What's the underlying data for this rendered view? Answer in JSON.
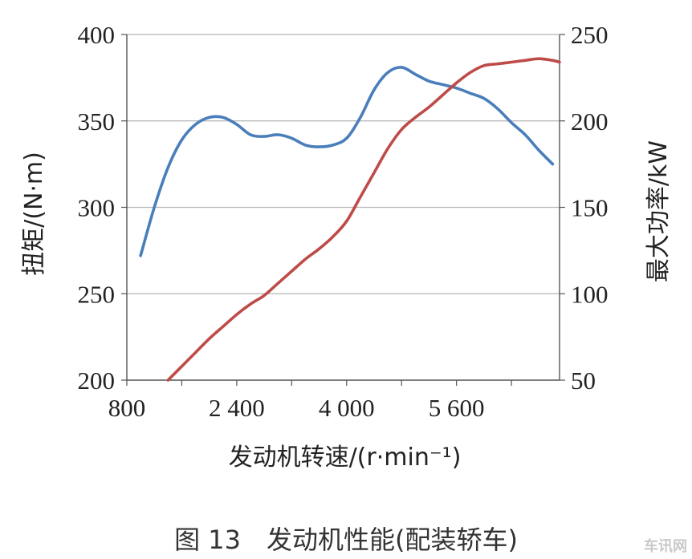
{
  "chart_data": {
    "type": "line",
    "x": [
      1000,
      1200,
      1400,
      1600,
      1800,
      2000,
      2200,
      2400,
      2600,
      2800,
      3000,
      3200,
      3400,
      3600,
      3800,
      4000,
      4200,
      4400,
      4600,
      4800,
      5000,
      5200,
      5400,
      5600,
      5800,
      6000,
      6200,
      6400,
      6600,
      6800,
      7000
    ],
    "xlabel": "发动机转速/(r·min⁻¹)",
    "xticks": [
      "800",
      "2 400",
      "4 000",
      "5 600"
    ],
    "xtick_values": [
      800,
      2400,
      4000,
      5600
    ],
    "xlim": [
      800,
      7100
    ],
    "y_left": {
      "label": "扭矩/(N·m)",
      "ticks": [
        "200",
        "250",
        "300",
        "350",
        "400"
      ],
      "tick_values": [
        200,
        250,
        300,
        350,
        400
      ],
      "ylim": [
        200,
        400
      ]
    },
    "y_right": {
      "label": "最大功率/kW",
      "ticks": [
        "50",
        "100",
        "150",
        "200",
        "250"
      ],
      "tick_values": [
        50,
        100,
        150,
        200,
        250
      ],
      "ylim": [
        50,
        250
      ]
    },
    "series": [
      {
        "axis": "left",
        "color": "#4a7ebb",
        "values": [
          272,
          300,
          323,
          339,
          348,
          352,
          352,
          348,
          342,
          341,
          342,
          340,
          336,
          335,
          336,
          340,
          352,
          368,
          378,
          381,
          377,
          373,
          371,
          369,
          366,
          363,
          357,
          349,
          342,
          333,
          325
        ]
      },
      {
        "axis": "right",
        "color": "#be4b48",
        "x": [
          1400,
          1600,
          1800,
          2000,
          2200,
          2400,
          2600,
          2800,
          3000,
          3200,
          3400,
          3600,
          3800,
          4000,
          4200,
          4400,
          4600,
          4800,
          5000,
          5200,
          5400,
          5600,
          5800,
          6000,
          6200,
          6400,
          6600,
          6800,
          7000,
          7100
        ],
        "values": [
          50,
          58,
          66,
          74,
          81,
          88,
          94,
          99,
          106,
          113,
          120,
          126,
          133,
          142,
          156,
          170,
          184,
          195,
          202,
          208,
          215,
          222,
          228,
          232,
          233,
          234,
          235,
          236,
          235,
          234
        ]
      }
    ]
  },
  "caption": "图 13　发动机性能(配装轿车)",
  "watermark": "车讯网"
}
